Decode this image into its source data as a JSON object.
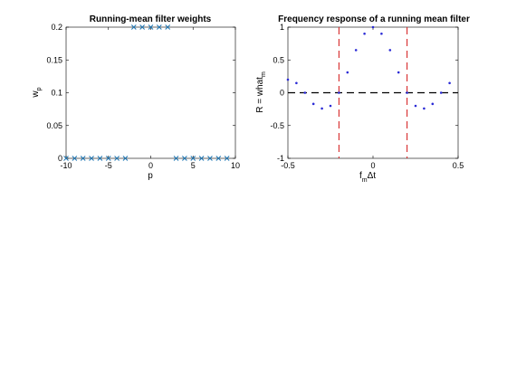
{
  "chart_data": [
    {
      "type": "scatter",
      "title": "Running-mean filter weights",
      "xlabel": "p",
      "ylabel": "w",
      "ylabel_sub": "p",
      "xlim": [
        -10,
        10
      ],
      "ylim": [
        0,
        0.2
      ],
      "xticks": [
        "-10",
        "-5",
        "0",
        "5",
        "10"
      ],
      "yticks": [
        "0",
        "0.05",
        "0.1",
        "0.15",
        "0.2"
      ],
      "marker": "x",
      "color": "#1f77b4",
      "x": [
        -10,
        -9,
        -8,
        -7,
        -6,
        -5,
        -4,
        -3,
        -2,
        -1,
        0,
        1,
        2,
        3,
        4,
        5,
        6,
        7,
        8,
        9
      ],
      "y": [
        0,
        0,
        0,
        0,
        0,
        0,
        0,
        0,
        0.2,
        0.2,
        0.2,
        0.2,
        0.2,
        0,
        0,
        0,
        0,
        0,
        0,
        0
      ]
    },
    {
      "type": "scatter",
      "title": "Frequency response of a running mean filter",
      "xlabel": "f",
      "xlabel_sub": "m",
      "xlabel_tail": "Δt",
      "ylabel": "R = what",
      "ylabel_sub": "m",
      "xlim": [
        -0.5,
        0.5
      ],
      "ylim": [
        -1,
        1
      ],
      "xticks": [
        "-0.5",
        "0",
        "0.5"
      ],
      "yticks": [
        "-1",
        "-0.5",
        "0",
        "0.5",
        "1"
      ],
      "marker": ".",
      "color": "#2b2bd6",
      "x": [
        -0.5,
        -0.45,
        -0.4,
        -0.35,
        -0.3,
        -0.25,
        -0.2,
        -0.15,
        -0.1,
        -0.05,
        0,
        0.05,
        0.1,
        0.15,
        0.2,
        0.25,
        0.3,
        0.35,
        0.4,
        0.45
      ],
      "y": [
        0.2,
        0.148,
        0,
        -0.17,
        -0.24,
        -0.2,
        0,
        0.31,
        0.65,
        0.9,
        1,
        0.9,
        0.65,
        0.31,
        0,
        -0.2,
        -0.24,
        -0.17,
        0,
        0.148
      ],
      "hlines": [
        {
          "y": 0,
          "style": "dashed",
          "color": "#000000"
        }
      ],
      "vlines": [
        {
          "x": -0.2,
          "style": "dashed",
          "color": "#d62728"
        },
        {
          "x": 0.2,
          "style": "dashed",
          "color": "#d62728"
        }
      ]
    }
  ]
}
